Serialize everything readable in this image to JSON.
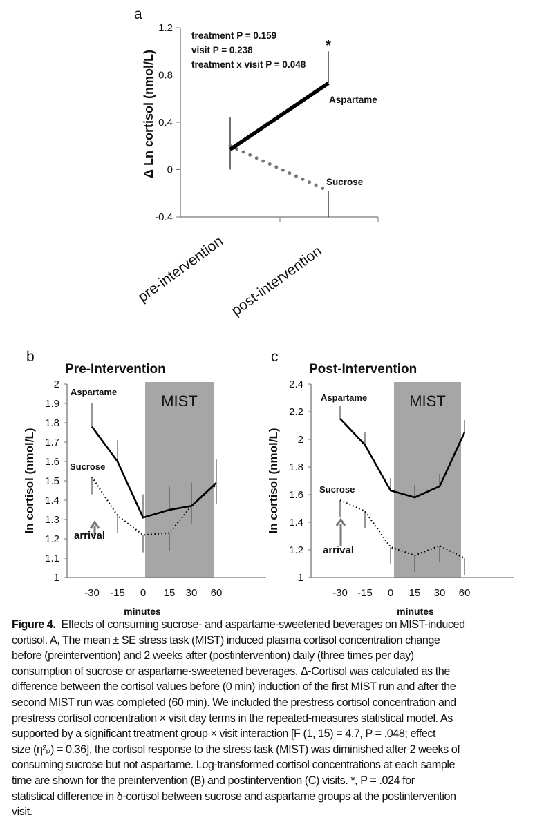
{
  "chart_data": [
    {
      "panel": "a",
      "type": "line",
      "ylabel": "Δ Ln cortisol (nmol/L)",
      "xlabel": "",
      "categories": [
        "pre-intervention",
        "post-intervention"
      ],
      "ylim": [
        -0.4,
        1.2
      ],
      "yticks": [
        "1.2",
        "0.8",
        "0.4",
        "0",
        "-0.4"
      ],
      "annotations": [
        "treatment  P = 0.159",
        "visit   P = 0.238",
        "treatment x visit  P = 0.048"
      ],
      "significance_marker": "*",
      "series": [
        {
          "name": "Aspartame",
          "values": [
            0.17,
            0.73
          ],
          "se": [
            0.27,
            0.27
          ],
          "style": "solid",
          "color": "#000000"
        },
        {
          "name": "Sucrose",
          "values": [
            0.2,
            -0.18
          ],
          "se": [
            0.22,
            0.22
          ],
          "style": "dotted",
          "color": "#777777"
        }
      ],
      "grid": false
    },
    {
      "panel": "b",
      "type": "line",
      "title": "Pre-Intervention",
      "ylabel": "ln cortisol (nmol/L)",
      "xlabel": "minutes",
      "categories": [
        "-30",
        "-15",
        "0",
        "15",
        "30",
        "60"
      ],
      "ylim": [
        1,
        2
      ],
      "yticks": [
        "2",
        "1.9",
        "1.8",
        "1.7",
        "1.6",
        "1.5",
        "1.4",
        "1.3",
        "1.2",
        "1.1",
        "1"
      ],
      "shaded_region": {
        "label": "MIST",
        "from": "0",
        "to": "60",
        "color": "#a6a6a6"
      },
      "arrow_label": "arrival",
      "series": [
        {
          "name": "Aspartame",
          "values": [
            1.78,
            1.6,
            1.31,
            1.35,
            1.37,
            1.49
          ],
          "se": [
            0.12,
            0.11,
            0.12,
            0.12,
            0.12,
            0.12
          ],
          "style": "solid",
          "color": "#000000"
        },
        {
          "name": "Sucrose",
          "values": [
            1.52,
            1.32,
            1.22,
            1.23,
            1.37,
            1.48
          ],
          "se": [
            0.09,
            0.09,
            0.09,
            0.09,
            0.09,
            0.1
          ],
          "style": "dotted",
          "color": "#000000"
        }
      ],
      "grid": false
    },
    {
      "panel": "c",
      "type": "line",
      "title": "Post-Intervention",
      "ylabel": "ln cortisol (nmol/L)",
      "xlabel": "minutes",
      "categories": [
        "-30",
        "-15",
        "0",
        "15",
        "30",
        "60"
      ],
      "ylim": [
        1,
        2.4
      ],
      "yticks": [
        "2.4",
        "2.2",
        "2",
        "1.8",
        "1.6",
        "1.4",
        "1.2",
        "1"
      ],
      "shaded_region": {
        "label": "MIST",
        "from": "0",
        "to": "60",
        "color": "#a6a6a6"
      },
      "arrow_label": "arrival",
      "series": [
        {
          "name": "Aspartame",
          "values": [
            2.15,
            1.96,
            1.63,
            1.58,
            1.66,
            2.05
          ],
          "se": [
            0.09,
            0.09,
            0.09,
            0.09,
            0.09,
            0.09
          ],
          "style": "solid",
          "color": "#000000"
        },
        {
          "name": "Sucrose",
          "values": [
            1.56,
            1.48,
            1.22,
            1.16,
            1.23,
            1.14
          ],
          "se": [
            0.12,
            0.12,
            0.12,
            0.12,
            0.12,
            0.12
          ],
          "style": "dotted",
          "color": "#000000"
        }
      ],
      "grid": false
    }
  ],
  "caption": {
    "label": "Figure 4.",
    "lines": [
      "Effects of consuming sucrose- and aspartame-sweetened beverages on MIST-induced",
      "cortisol. A, The mean ± SE stress task (MIST) induced plasma cortisol concentration change",
      "before (preintervention) and 2 weeks after (postintervention) daily (three times per day)",
      "consumption of sucrose or aspartame-sweetened beverages. Δ-Cortisol was calculated as the",
      "difference between the cortisol values before (0 min) induction of the first MIST run and after the",
      "second MIST run was completed (60 min). We included the prestress cortisol concentration and",
      "prestress cortisol concentration × visit day terms in the repeated-measures statistical model. As",
      "supported by a significant treatment group × visit interaction [F (1, 15) = 4.7, P = .048; effect",
      "size (η²ₚ) = 0.36], the cortisol response to the stress task (MIST) was diminished after 2 weeks of",
      "consuming sucrose but not aspartame. Log-transformed cortisol concentrations at each sample",
      "time are shown for the preintervention (B) and postintervention (C) visits. *, P = .024 for",
      "statistical difference in δ-cortisol between sucrose and aspartame groups at the postintervention",
      "visit."
    ]
  }
}
